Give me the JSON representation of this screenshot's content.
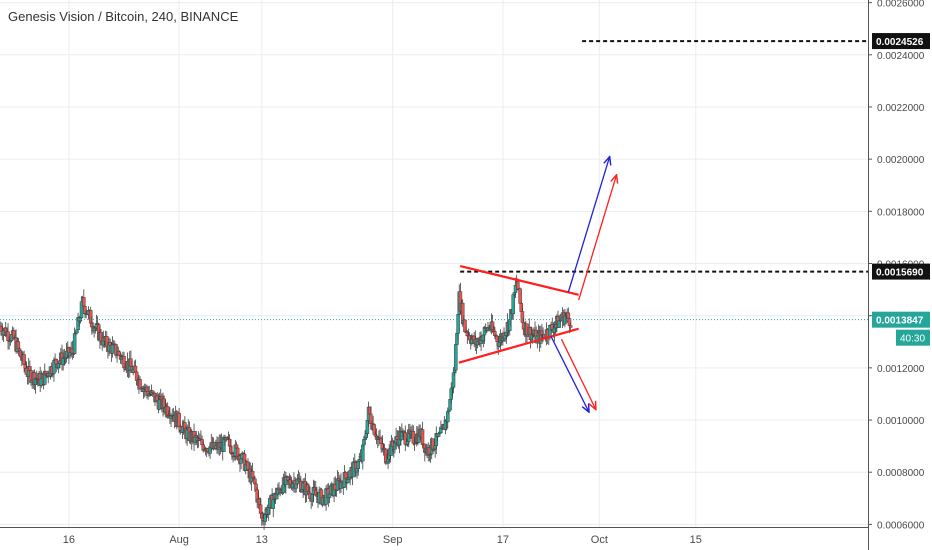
{
  "header": {
    "title": "Genesis Vision / Bitcoin, 240, BINANCE"
  },
  "colors": {
    "up": "#26a69a",
    "down": "#ef5350",
    "candle_edge": "#3f3f3f",
    "grid": "#e9eef2",
    "trend_red": "#ff1f1f",
    "arrow_blue": "#2121d6",
    "price_line": "#26a69a"
  },
  "chart_data": {
    "type": "candlestick",
    "title": "Genesis Vision / Bitcoin, 240, BINANCE",
    "x_axis": {
      "labels": [
        "16",
        "Aug",
        "13",
        "Sep",
        "17",
        "Oct",
        "15"
      ],
      "label_days": [
        16,
        32,
        44,
        63,
        79,
        93,
        107
      ],
      "range_days": [
        6,
        132
      ]
    },
    "y_axis": {
      "range": [
        0.00059,
        0.00261
      ],
      "ticks": [
        "0.0026000",
        "0.0024000",
        "0.0022000",
        "0.0020000",
        "0.0018000",
        "0.0016000",
        "0.0014000",
        "0.0012000",
        "0.0010000",
        "0.0008000",
        "0.0006000"
      ],
      "tick_values": [
        0.0026,
        0.0024,
        0.0022,
        0.002,
        0.0018,
        0.0016,
        0.0014,
        0.0012,
        0.001,
        0.0008,
        0.0006
      ],
      "side": "right"
    },
    "price_keypoints": [
      [
        6,
        0.00136
      ],
      [
        8,
        0.00131
      ],
      [
        10,
        0.00118
      ],
      [
        12,
        0.00115
      ],
      [
        14,
        0.00122
      ],
      [
        16.5,
        0.00126
      ],
      [
        18,
        0.00145
      ],
      [
        19.5,
        0.00137
      ],
      [
        21,
        0.0013
      ],
      [
        23,
        0.00126
      ],
      [
        25,
        0.0012
      ],
      [
        27,
        0.00112
      ],
      [
        29,
        0.00107
      ],
      [
        31,
        0.00103
      ],
      [
        33,
        0.00095
      ],
      [
        35,
        0.00091
      ],
      [
        37,
        0.00089
      ],
      [
        39,
        0.00091
      ],
      [
        41,
        0.00086
      ],
      [
        43,
        0.00075
      ],
      [
        44,
        0.00062
      ],
      [
        45.5,
        0.00069
      ],
      [
        47,
        0.00075
      ],
      [
        49,
        0.00077
      ],
      [
        51,
        0.00072
      ],
      [
        53,
        0.0007
      ],
      [
        55,
        0.00075
      ],
      [
        57,
        0.0008
      ],
      [
        58.5,
        0.00085
      ],
      [
        59.5,
        0.00103
      ],
      [
        61,
        0.00092
      ],
      [
        62,
        0.00086
      ],
      [
        64,
        0.00094
      ],
      [
        66,
        0.00093
      ],
      [
        67,
        0.00095
      ],
      [
        68,
        0.00088
      ],
      [
        70,
        0.00094
      ],
      [
        71,
        0.00102
      ],
      [
        72,
        0.0012
      ],
      [
        72.6,
        0.00148
      ],
      [
        73.5,
        0.00135
      ],
      [
        75,
        0.00129
      ],
      [
        77,
        0.00136
      ],
      [
        78.5,
        0.0013
      ],
      [
        80,
        0.00138
      ],
      [
        81,
        0.00153
      ],
      [
        82,
        0.00136
      ],
      [
        84,
        0.00131
      ],
      [
        86,
        0.00135
      ],
      [
        88,
        0.0014
      ],
      [
        89,
        0.00138
      ]
    ],
    "horizontal_levels": [
      {
        "value": 0.0024526,
        "label": "0.0024526",
        "from_day": 90.5,
        "style": "dashed",
        "color": "#111111"
      },
      {
        "value": 0.001569,
        "label": "0.0015690",
        "from_day": 72.8,
        "style": "dashed",
        "color": "#111111"
      }
    ],
    "last_price": {
      "value": 0.0013847,
      "label": "0.0013847",
      "countdown": "40:30"
    },
    "trendlines": [
      {
        "name": "upper-trendline",
        "from": [
          72.8,
          0.00159
        ],
        "to": [
          90,
          0.00148
        ],
        "color": "#ff1f1f"
      },
      {
        "name": "lower-trendline",
        "from": [
          72.6,
          0.00122
        ],
        "to": [
          90,
          0.00135
        ],
        "color": "#ff1f1f"
      }
    ],
    "arrows": [
      {
        "name": "breakout-up-blue-arrow",
        "from": [
          88.5,
          0.00149
        ],
        "to": [
          94.5,
          0.00201
        ],
        "color": "#2121d6"
      },
      {
        "name": "breakout-up-red-arrow",
        "from": [
          90,
          0.00146
        ],
        "to": [
          95.5,
          0.00194
        ],
        "color": "#ff1f1f"
      },
      {
        "name": "breakdown-blue-arrow",
        "from": [
          86,
          0.00132
        ],
        "to": [
          91.5,
          0.00103
        ],
        "color": "#2121d6"
      },
      {
        "name": "breakdown-red-arrow",
        "from": [
          87.5,
          0.00131
        ],
        "to": [
          92.5,
          0.00104
        ],
        "color": "#ff1f1f"
      }
    ],
    "grid": true,
    "legend": "none"
  }
}
